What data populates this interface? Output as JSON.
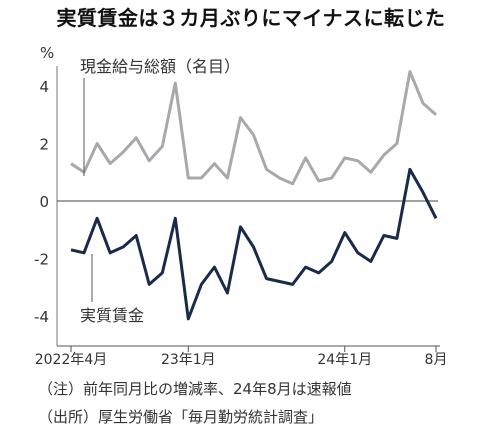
{
  "chart_data": {
    "type": "line",
    "title": "実質賃金は３カ月ぶりにマイナスに転じた",
    "ylabel": "%",
    "ylim": [
      -5,
      5
    ],
    "yticks": [
      4,
      2,
      0,
      -2,
      -4
    ],
    "x": [
      "2022-04",
      "2022-05",
      "2022-06",
      "2022-07",
      "2022-08",
      "2022-09",
      "2022-10",
      "2022-11",
      "2022-12",
      "2023-01",
      "2023-02",
      "2023-03",
      "2023-04",
      "2023-05",
      "2023-06",
      "2023-07",
      "2023-08",
      "2023-09",
      "2023-10",
      "2023-11",
      "2023-12",
      "2024-01",
      "2024-02",
      "2024-03",
      "2024-04",
      "2024-05",
      "2024-06",
      "2024-07",
      "2024-08"
    ],
    "xtick_labels": [
      {
        "x": "2022-04",
        "label": "2022年4月"
      },
      {
        "x": "2023-01",
        "label": "23年1月"
      },
      {
        "x": "2024-01",
        "label": "24年1月"
      },
      {
        "x": "2024-08",
        "label": "8月"
      }
    ],
    "series": [
      {
        "name": "現金給与総額（名目）",
        "color": "#a9a9ad",
        "values": [
          1.3,
          1.0,
          2.0,
          1.3,
          1.7,
          2.2,
          1.4,
          1.9,
          4.1,
          0.8,
          0.8,
          1.3,
          0.8,
          2.9,
          2.3,
          1.1,
          0.8,
          0.6,
          1.5,
          0.7,
          0.8,
          1.5,
          1.4,
          1.0,
          1.6,
          2.0,
          4.5,
          3.4,
          3.0
        ]
      },
      {
        "name": "実質賃金",
        "color": "#1a2b4a",
        "values": [
          -1.7,
          -1.8,
          -0.6,
          -1.8,
          -1.6,
          -1.2,
          -2.9,
          -2.5,
          -0.6,
          -4.1,
          -2.9,
          -2.3,
          -3.2,
          -0.9,
          -1.6,
          -2.7,
          -2.8,
          -2.9,
          -2.3,
          -2.5,
          -2.1,
          -1.1,
          -1.8,
          -2.1,
          -1.2,
          -1.3,
          1.1,
          0.3,
          -0.6
        ]
      }
    ],
    "annotations": {
      "nominal_label": "現金給与総額（名目）",
      "real_label": "実質賃金"
    }
  },
  "notes": [
    "（注）前年同月比の増減率、24年8月は速報値",
    "（出所）厚生労働省「毎月勤労統計調査」"
  ]
}
